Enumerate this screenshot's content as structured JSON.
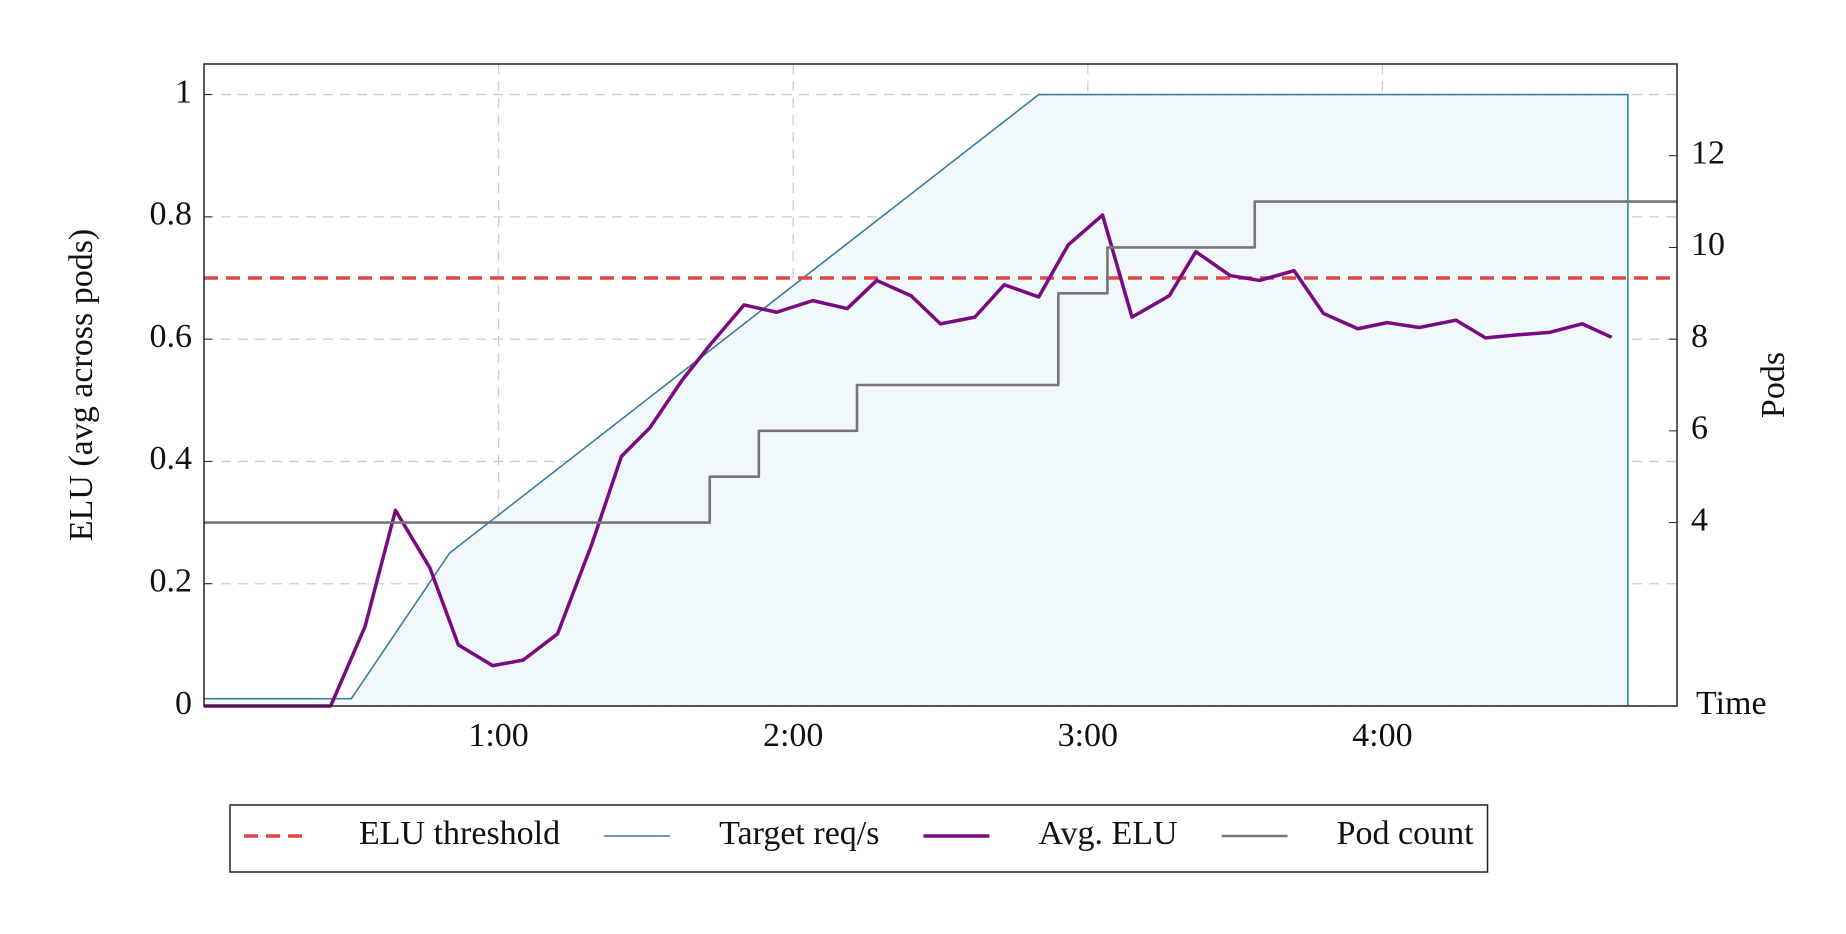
{
  "chart_data": {
    "type": "line",
    "xlabel": "Time",
    "ylabel": "ELU (avg across pods)",
    "y2label": "Pods",
    "xlim": [
      0,
      300
    ],
    "ylim": [
      0,
      1.05
    ],
    "y2lim": [
      0,
      14
    ],
    "xticks": [
      {
        "value": 60,
        "label": "1:00"
      },
      {
        "value": 120,
        "label": "2:00"
      },
      {
        "value": 180,
        "label": "3:00"
      },
      {
        "value": 240,
        "label": "4:00"
      }
    ],
    "yticks": [
      0,
      0.2,
      0.4,
      0.6,
      0.8,
      1
    ],
    "y2ticks": [
      4,
      6,
      8,
      10,
      12
    ],
    "grid": true,
    "legend": "bottom",
    "series": [
      {
        "name": "ELU threshold",
        "color": "#e04848",
        "style": "dashed",
        "x": [
          0,
          300
        ],
        "values": [
          0.7,
          0.7
        ]
      },
      {
        "name": "Target req/s",
        "color": "#3a7f9a",
        "fill": "#f0f8fb",
        "style": "area",
        "x": [
          0,
          30,
          50,
          170,
          290,
          290
        ],
        "values": [
          0.012,
          0.012,
          0.25,
          1,
          1,
          0
        ]
      },
      {
        "name": "Avg. ELU",
        "color": "#7a0a80",
        "style": "thick",
        "x": [
          0,
          25.8,
          32.8,
          39,
          46,
          51.8,
          58.8,
          65,
          72,
          79,
          85,
          90.8,
          97.3,
          103,
          110,
          116.6,
          124,
          131,
          137,
          144,
          150,
          157,
          163,
          170,
          176,
          183,
          189,
          196.6,
          202,
          209,
          215,
          222,
          228,
          235,
          241,
          247.5,
          255,
          261,
          267.5,
          274,
          280.7,
          286.7
        ],
        "values": [
          0,
          0,
          0.13,
          0.32,
          0.226,
          0.1,
          0.066,
          0.075,
          0.118,
          0.265,
          0.408,
          0.455,
          0.532,
          0.59,
          0.656,
          0.644,
          0.663,
          0.65,
          0.696,
          0.671,
          0.625,
          0.636,
          0.689,
          0.669,
          0.754,
          0.803,
          0.636,
          0.671,
          0.743,
          0.704,
          0.696,
          0.712,
          0.642,
          0.617,
          0.627,
          0.619,
          0.631,
          0.602,
          0.607,
          0.611,
          0.625,
          0.603
        ]
      },
      {
        "name": "Pod count",
        "color": "#777777",
        "style": "line",
        "axis": "y2",
        "x": [
          0,
          103,
          103,
          113,
          113,
          133,
          133,
          174,
          174,
          184,
          184,
          214,
          214,
          300
        ],
        "values": [
          4,
          4,
          5,
          5,
          6,
          6,
          7,
          7,
          9,
          9,
          10,
          10,
          11,
          11
        ]
      }
    ]
  }
}
